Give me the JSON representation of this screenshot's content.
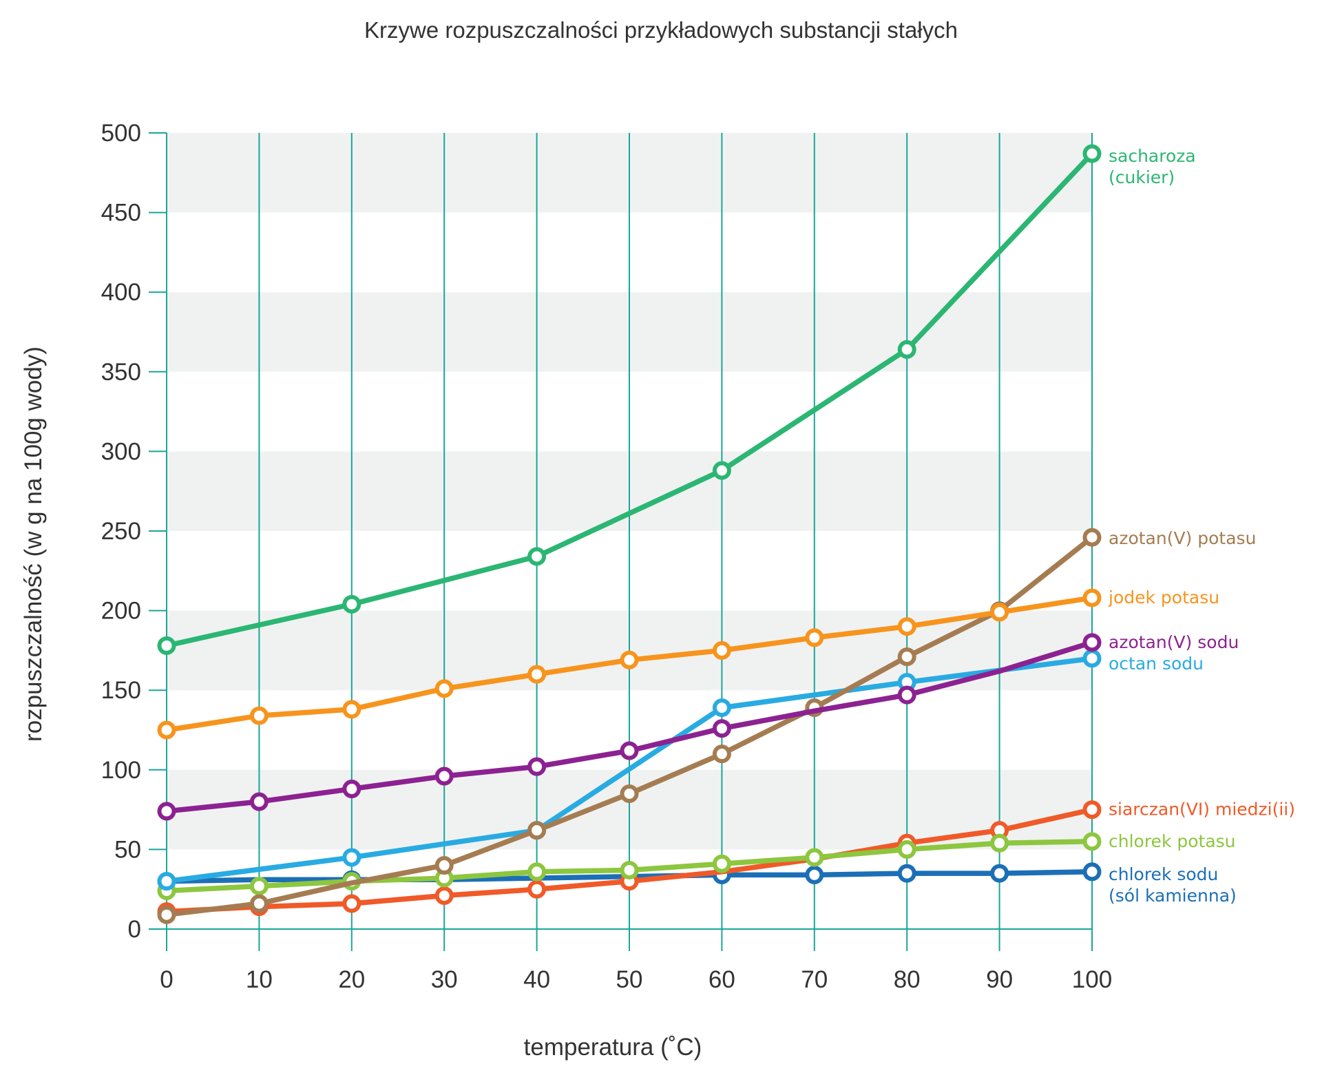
{
  "chart_data": {
    "type": "line",
    "title": "Krzywe rozpuszczalności przykładowych substancji stałych",
    "xlabel": "temperatura (˚C)",
    "ylabel": "rozpuszczalność (w g na 100g wody)",
    "xlim": [
      0,
      100
    ],
    "ylim": [
      0,
      500
    ],
    "x_ticks": [
      0,
      10,
      20,
      30,
      40,
      50,
      60,
      70,
      80,
      90,
      100
    ],
    "y_ticks": [
      0,
      50,
      100,
      150,
      200,
      250,
      300,
      350,
      400,
      450,
      500
    ],
    "grid": "vertical lines, alternating horizontal bands",
    "legend": "inline labels at right end of lines",
    "colors": {
      "grid": "#1aa59a",
      "band": "#f0f2f1"
    },
    "series": [
      {
        "name": "chlorek sodu (sól kamienna)",
        "label_lines": [
          "chlorek sodu",
          "(sól kamienna)"
        ],
        "color": "#1c6fb6",
        "x": [
          0,
          10,
          20,
          30,
          40,
          50,
          60,
          70,
          80,
          90,
          100
        ],
        "y": [
          30,
          31,
          31,
          31,
          32,
          33,
          34,
          34,
          35,
          35,
          36
        ],
        "markers": [
          0,
          20,
          60,
          70,
          80,
          90,
          100
        ]
      },
      {
        "name": "siarczan(VI) miedzi(ii)",
        "label_lines": [
          "siarczan(VI) miedzi(ii)"
        ],
        "color": "#f05a28",
        "x": [
          0,
          10,
          20,
          30,
          40,
          50,
          60,
          70,
          80,
          90,
          100
        ],
        "y": [
          11,
          14,
          16,
          21,
          25,
          30,
          36,
          44,
          54,
          62,
          75
        ],
        "markers": [
          0,
          10,
          20,
          30,
          40,
          50,
          80,
          90,
          100
        ]
      },
      {
        "name": "chlorek potasu",
        "label_lines": [
          "chlorek potasu"
        ],
        "color": "#8dc63f",
        "x": [
          0,
          10,
          20,
          30,
          40,
          50,
          60,
          70,
          80,
          90,
          100
        ],
        "y": [
          24,
          27,
          30,
          32,
          36,
          37,
          41,
          45,
          50,
          54,
          55
        ],
        "markers": [
          0,
          10,
          20,
          30,
          40,
          50,
          60,
          70,
          80,
          90,
          100
        ]
      },
      {
        "name": "octan sodu",
        "label_lines": [
          "octan sodu"
        ],
        "color": "#29abe2",
        "x": [
          0,
          20,
          40,
          60,
          80,
          100
        ],
        "y": [
          30,
          45,
          62,
          139,
          155,
          170
        ],
        "markers": [
          0,
          20,
          40,
          60,
          80,
          100
        ]
      },
      {
        "name": "azotan(V) potasu",
        "label_lines": [
          "azotan(V) potasu"
        ],
        "color": "#a57c52",
        "x": [
          0,
          10,
          20,
          30,
          40,
          50,
          60,
          70,
          80,
          90,
          100
        ],
        "y": [
          9,
          16,
          29,
          40,
          62,
          85,
          110,
          139,
          171,
          200,
          246
        ],
        "markers": [
          0,
          10,
          30,
          40,
          50,
          60,
          70,
          80,
          90,
          100
        ]
      },
      {
        "name": "azotan(V) sodu",
        "label_lines": [
          "azotan(V) sodu"
        ],
        "color": "#8c2291",
        "x": [
          0,
          10,
          20,
          30,
          40,
          50,
          60,
          70,
          80,
          90,
          100
        ],
        "y": [
          74,
          80,
          88,
          96,
          102,
          112,
          126,
          137,
          147,
          162,
          180
        ],
        "markers": [
          0,
          10,
          20,
          30,
          40,
          50,
          60,
          80,
          100
        ]
      },
      {
        "name": "jodek potasu",
        "label_lines": [
          "jodek potasu"
        ],
        "color": "#f7941d",
        "x": [
          0,
          10,
          20,
          30,
          40,
          50,
          60,
          70,
          80,
          90,
          100
        ],
        "y": [
          125,
          134,
          138,
          151,
          160,
          169,
          175,
          183,
          190,
          199,
          208
        ],
        "markers": [
          0,
          10,
          20,
          30,
          40,
          50,
          60,
          70,
          80,
          90,
          100
        ]
      },
      {
        "name": "sacharoza (cukier)",
        "label_lines": [
          "sacharoza",
          "(cukier)"
        ],
        "color": "#2bb673",
        "x": [
          0,
          20,
          40,
          60,
          80,
          100
        ],
        "y": [
          178,
          204,
          234,
          288,
          364,
          487
        ],
        "markers": [
          0,
          20,
          40,
          60,
          80,
          100
        ]
      }
    ]
  }
}
